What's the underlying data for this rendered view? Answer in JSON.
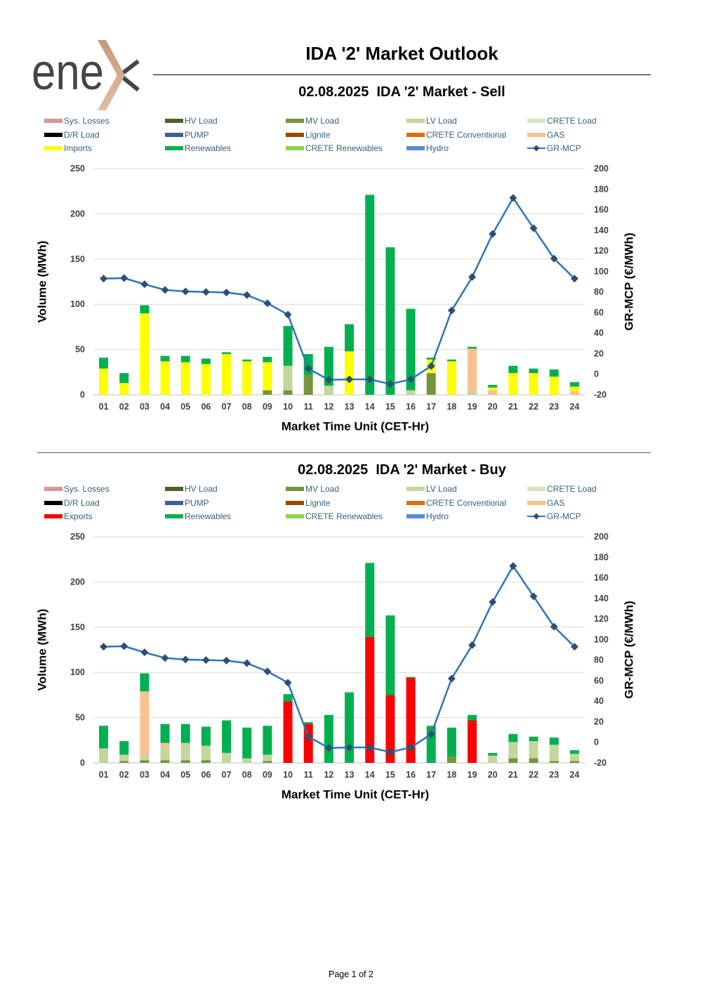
{
  "logo": {
    "text": "enex",
    "text_color": "#464646",
    "accent_top": "#c79a7c",
    "accent_bottom": "#dfbda4"
  },
  "header": {
    "title": "IDA '2' Market Outlook"
  },
  "footer": {
    "page_label": "Page 1 of 2"
  },
  "chart_data": [
    {
      "type": "bar",
      "stacked": true,
      "title": "02.08.2025  IDA '2' Market - Sell",
      "xlabel": "Market Time Unit (CET-Hr)",
      "ylabel": "Volume (MWh)",
      "y2label": "GR-MCP (€/MWh)",
      "ylim": [
        0,
        250
      ],
      "y2lim": [
        -20,
        200
      ],
      "yticks": [
        0,
        50,
        100,
        150,
        200,
        250
      ],
      "y2ticks": [
        -20,
        0,
        20,
        40,
        60,
        80,
        100,
        120,
        140,
        160,
        180,
        200
      ],
      "categories": [
        "01",
        "02",
        "03",
        "04",
        "05",
        "06",
        "07",
        "08",
        "09",
        "10",
        "11",
        "12",
        "13",
        "14",
        "15",
        "16",
        "17",
        "18",
        "19",
        "20",
        "21",
        "22",
        "23",
        "24"
      ],
      "legend": [
        {
          "name": "Sys. Losses",
          "color": "#d99594"
        },
        {
          "name": "HV Load",
          "color": "#4f6228"
        },
        {
          "name": "MV Load",
          "color": "#77933c"
        },
        {
          "name": "LV Load",
          "color": "#c3d69b"
        },
        {
          "name": "CRETE Load",
          "color": "#d7e4bd"
        },
        {
          "name": "D/R Load",
          "color": "#000000"
        },
        {
          "name": "PUMP",
          "color": "#3b6094"
        },
        {
          "name": "Lignite",
          "color": "#984807"
        },
        {
          "name": "CRETE Conventional",
          "color": "#e46c0a"
        },
        {
          "name": "GAS",
          "color": "#fac090"
        },
        {
          "name": "Imports",
          "color": "#ffff00"
        },
        {
          "name": "Renewables",
          "color": "#00b050"
        },
        {
          "name": "CRETE Renewables",
          "color": "#92d050"
        },
        {
          "name": "Hydro",
          "color": "#558ed5"
        },
        {
          "name": "GR-MCP",
          "color": "#2e75b6"
        }
      ],
      "series": [
        {
          "name": "MV Load",
          "color": "#77933c",
          "values": [
            0,
            0,
            0,
            0,
            0,
            0,
            0,
            0,
            5,
            5,
            22,
            0,
            0,
            0,
            0,
            0,
            24,
            0,
            0,
            0,
            0,
            0,
            0,
            0
          ]
        },
        {
          "name": "LV Load",
          "color": "#c3d69b",
          "values": [
            0,
            0,
            0,
            0,
            0,
            0,
            0,
            0,
            0,
            27,
            0,
            10,
            0,
            0,
            0,
            5,
            0,
            0,
            4,
            0,
            0,
            0,
            0,
            0
          ]
        },
        {
          "name": "GAS",
          "color": "#fac090",
          "values": [
            0,
            0,
            0,
            0,
            0,
            0,
            0,
            0,
            0,
            0,
            0,
            0,
            0,
            0,
            0,
            0,
            0,
            0,
            47,
            5,
            0,
            0,
            0,
            4
          ]
        },
        {
          "name": "Imports",
          "color": "#ffff00",
          "values": [
            29,
            13,
            90,
            37,
            36,
            34,
            45,
            37,
            31,
            0,
            0,
            0,
            48,
            0,
            0,
            0,
            15,
            37,
            0,
            3,
            24,
            24,
            20,
            5
          ]
        },
        {
          "name": "Renewables",
          "color": "#00b050",
          "values": [
            12,
            11,
            9,
            6,
            7,
            6,
            2,
            2,
            6,
            44,
            23,
            43,
            30,
            221,
            163,
            90,
            2,
            2,
            2,
            3,
            8,
            5,
            8,
            5
          ]
        }
      ],
      "line": {
        "name": "GR-MCP",
        "color": "#2e75b6",
        "marker_color": "#2f4e73",
        "values": [
          93,
          93.5,
          87.5,
          82,
          80.5,
          80,
          79.5,
          77,
          69,
          58,
          5.5,
          -5.5,
          -5,
          -5,
          -9.5,
          -5,
          8,
          62,
          94.5,
          136.5,
          171.5,
          142,
          112.5,
          93
        ]
      }
    },
    {
      "type": "bar",
      "stacked": true,
      "title": "02.08.2025  IDA '2' Market - Buy",
      "xlabel": "Market Time Unit (CET-Hr)",
      "ylabel": "Volume (MWh)",
      "y2label": "GR-MCP (€/MWh)",
      "ylim": [
        0,
        250
      ],
      "y2lim": [
        -20,
        200
      ],
      "yticks": [
        0,
        50,
        100,
        150,
        200,
        250
      ],
      "y2ticks": [
        -20,
        0,
        20,
        40,
        60,
        80,
        100,
        120,
        140,
        160,
        180,
        200
      ],
      "categories": [
        "01",
        "02",
        "03",
        "04",
        "05",
        "06",
        "07",
        "08",
        "09",
        "10",
        "11",
        "12",
        "13",
        "14",
        "15",
        "16",
        "17",
        "18",
        "19",
        "20",
        "21",
        "22",
        "23",
        "24"
      ],
      "legend": [
        {
          "name": "Sys. Losses",
          "color": "#d99594"
        },
        {
          "name": "HV Load",
          "color": "#4f6228"
        },
        {
          "name": "MV Load",
          "color": "#77933c"
        },
        {
          "name": "LV Load",
          "color": "#c3d69b"
        },
        {
          "name": "CRETE Load",
          "color": "#d7e4bd"
        },
        {
          "name": "D/R Load",
          "color": "#000000"
        },
        {
          "name": "PUMP",
          "color": "#3b6094"
        },
        {
          "name": "Lignite",
          "color": "#984807"
        },
        {
          "name": "CRETE Conventional",
          "color": "#e46c0a"
        },
        {
          "name": "GAS",
          "color": "#fac090"
        },
        {
          "name": "Exports",
          "color": "#ff0000"
        },
        {
          "name": "Renewables",
          "color": "#00b050"
        },
        {
          "name": "CRETE Renewables",
          "color": "#92d050"
        },
        {
          "name": "Hydro",
          "color": "#558ed5"
        },
        {
          "name": "GR-MCP",
          "color": "#2e75b6"
        }
      ],
      "series": [
        {
          "name": "MV Load",
          "color": "#77933c",
          "values": [
            0,
            2,
            3,
            3,
            3,
            3,
            0,
            0,
            2,
            0,
            0,
            0,
            0,
            0,
            0,
            0,
            0,
            7,
            0,
            0,
            5,
            5,
            2,
            2
          ]
        },
        {
          "name": "LV Load",
          "color": "#c3d69b",
          "values": [
            16,
            7,
            6,
            14,
            19,
            16,
            11,
            5,
            7,
            0,
            0,
            0,
            0,
            0,
            0,
            0,
            0,
            0,
            0,
            8,
            18,
            19,
            18,
            8
          ]
        },
        {
          "name": "GAS",
          "color": "#fac090",
          "values": [
            0,
            0,
            70,
            5,
            0,
            0,
            0,
            0,
            0,
            0,
            0,
            0,
            0,
            0,
            0,
            0,
            0,
            0,
            0,
            0,
            0,
            0,
            0,
            0
          ]
        },
        {
          "name": "Exports",
          "color": "#ff0000",
          "values": [
            0,
            0,
            0,
            0,
            0,
            0,
            0,
            0,
            0,
            68,
            43,
            0,
            0,
            139,
            75,
            94,
            0,
            0,
            47,
            0,
            0,
            0,
            0,
            0
          ]
        },
        {
          "name": "Renewables",
          "color": "#00b050",
          "values": [
            25,
            15,
            20,
            21,
            21,
            21,
            36,
            34,
            32,
            8,
            2,
            53,
            78,
            82,
            88,
            1,
            41,
            32,
            6,
            3,
            9,
            5,
            8,
            4
          ]
        }
      ],
      "line": {
        "name": "GR-MCP",
        "color": "#2e75b6",
        "marker_color": "#2f4e73",
        "values": [
          93,
          93.5,
          87.5,
          82,
          80.5,
          80,
          79.5,
          77,
          69,
          58,
          5.5,
          -5.5,
          -5,
          -5,
          -9.5,
          -5,
          8,
          62,
          94.5,
          136.5,
          171.5,
          142,
          112.5,
          93
        ]
      }
    }
  ]
}
